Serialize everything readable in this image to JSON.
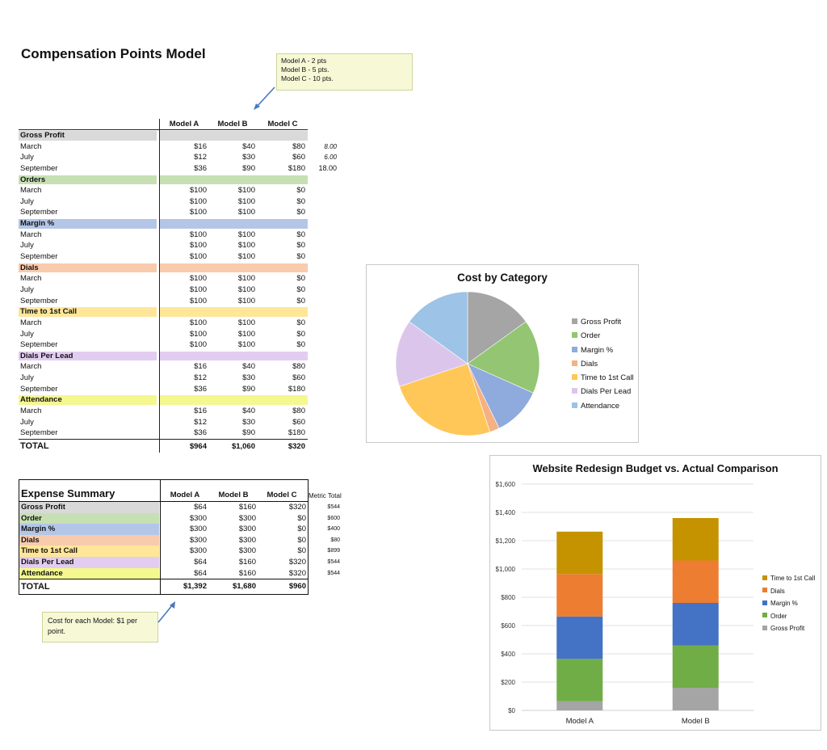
{
  "page_title": "Compensation Points Model",
  "note_top": [
    "Model A - 2 pts",
    "Model B - 5 pts.",
    "Model C - 10 pts."
  ],
  "note_bottom": "Cost for each Model: $1 per point.",
  "main_table": {
    "headers": [
      "Model A",
      "Model B",
      "Model C"
    ],
    "sections": [
      {
        "name": "Gross Profit",
        "color": "#d9d9d9",
        "rows": [
          {
            "label": "March",
            "a": "$16",
            "b": "$40",
            "c": "$80",
            "side": "8.00"
          },
          {
            "label": "July",
            "a": "$12",
            "b": "$30",
            "c": "$60",
            "side": "6.00"
          },
          {
            "label": "September",
            "a": "$36",
            "b": "$90",
            "c": "$180",
            "side": "18.00"
          }
        ]
      },
      {
        "name": "Orders",
        "color": "#c6e0b4",
        "rows": [
          {
            "label": "March",
            "a": "$100",
            "b": "$100",
            "c": "$0"
          },
          {
            "label": "July",
            "a": "$100",
            "b": "$100",
            "c": "$0"
          },
          {
            "label": "September",
            "a": "$100",
            "b": "$100",
            "c": "$0"
          }
        ]
      },
      {
        "name": "Margin %",
        "color": "#b4c6e7",
        "rows": [
          {
            "label": "March",
            "a": "$100",
            "b": "$100",
            "c": "$0"
          },
          {
            "label": "July",
            "a": "$100",
            "b": "$100",
            "c": "$0"
          },
          {
            "label": "September",
            "a": "$100",
            "b": "$100",
            "c": "$0"
          }
        ]
      },
      {
        "name": "Dials",
        "color": "#f8cbad",
        "rows": [
          {
            "label": "March",
            "a": "$100",
            "b": "$100",
            "c": "$0"
          },
          {
            "label": "July",
            "a": "$100",
            "b": "$100",
            "c": "$0"
          },
          {
            "label": "September",
            "a": "$100",
            "b": "$100",
            "c": "$0"
          }
        ]
      },
      {
        "name": "Time to 1st Call",
        "color": "#ffe699",
        "rows": [
          {
            "label": "March",
            "a": "$100",
            "b": "$100",
            "c": "$0"
          },
          {
            "label": "July",
            "a": "$100",
            "b": "$100",
            "c": "$0"
          },
          {
            "label": "September",
            "a": "$100",
            "b": "$100",
            "c": "$0"
          }
        ]
      },
      {
        "name": "Dials Per Lead",
        "color": "#e2cdf0",
        "rows": [
          {
            "label": "March",
            "a": "$16",
            "b": "$40",
            "c": "$80"
          },
          {
            "label": "July",
            "a": "$12",
            "b": "$30",
            "c": "$60"
          },
          {
            "label": "September",
            "a": "$36",
            "b": "$90",
            "c": "$180"
          }
        ]
      },
      {
        "name": "Attendance",
        "color": "#f4f88f",
        "rows": [
          {
            "label": "March",
            "a": "$16",
            "b": "$40",
            "c": "$80"
          },
          {
            "label": "July",
            "a": "$12",
            "b": "$30",
            "c": "$60"
          },
          {
            "label": "September",
            "a": "$36",
            "b": "$90",
            "c": "$180"
          }
        ]
      }
    ],
    "total": {
      "label": "TOTAL",
      "a": "$964",
      "b": "$1,060",
      "c": "$320"
    }
  },
  "expense_summary": {
    "title": "Expense Summary",
    "headers": [
      "Model A",
      "Model B",
      "Model C"
    ],
    "metric_total_header": "Metric Total",
    "rows": [
      {
        "label": "Gross Profit",
        "color": "#d9d9d9",
        "a": "$64",
        "b": "$160",
        "c": "$320",
        "metric": "$544"
      },
      {
        "label": "Order",
        "color": "#c6e0b4",
        "a": "$300",
        "b": "$300",
        "c": "$0",
        "metric": "$600"
      },
      {
        "label": "Margin %",
        "color": "#b4c6e7",
        "a": "$300",
        "b": "$300",
        "c": "$0",
        "metric": "$400"
      },
      {
        "label": "Dials",
        "color": "#f8cbad",
        "a": "$300",
        "b": "$300",
        "c": "$0",
        "metric": "$80"
      },
      {
        "label": "Time to 1st Call",
        "color": "#ffe699",
        "a": "$300",
        "b": "$300",
        "c": "$0",
        "metric": "$899"
      },
      {
        "label": "Dials Per Lead",
        "color": "#e2cdf0",
        "a": "$64",
        "b": "$160",
        "c": "$320",
        "metric": "$544"
      },
      {
        "label": "Attendance",
        "color": "#f4f88f",
        "a": "$64",
        "b": "$160",
        "c": "$320",
        "metric": "$544"
      }
    ],
    "total": {
      "label": "TOTAL",
      "a": "$1,392",
      "b": "$1,680",
      "c": "$960"
    }
  },
  "chart_data": [
    {
      "type": "pie",
      "title": "Cost by Category",
      "legend_position": "right",
      "categories": [
        "Gross Profit",
        "Order",
        "Margin %",
        "Dials",
        "Time to 1st Call",
        "Dials Per Lead",
        "Attendance"
      ],
      "values": [
        544,
        600,
        400,
        80,
        899,
        544,
        544
      ],
      "colors": [
        "#a5a5a5",
        "#93c572",
        "#8faadc",
        "#f4b183",
        "#ffc758",
        "#dcc5eb",
        "#9dc3e6"
      ]
    },
    {
      "type": "bar",
      "stacked": true,
      "title": "Website Redesign Budget vs. Actual Comparison",
      "categories": [
        "Model A",
        "Model B"
      ],
      "ylim": [
        0,
        1600
      ],
      "yticks": [
        "$0",
        "$200",
        "$400",
        "$600",
        "$800",
        "$1,000",
        "$1,200",
        "$1,400",
        "$1,600"
      ],
      "grid": true,
      "legend_position": "right",
      "series": [
        {
          "name": "Gross Profit",
          "color": "#a5a5a5",
          "values": [
            64,
            160
          ]
        },
        {
          "name": "Order",
          "color": "#70ad47",
          "values": [
            300,
            300
          ]
        },
        {
          "name": "Margin %",
          "color": "#4472c4",
          "values": [
            300,
            300
          ]
        },
        {
          "name": "Dials",
          "color": "#ed7d31",
          "values": [
            300,
            300
          ]
        },
        {
          "name": "Time to 1st Call",
          "color": "#c59300",
          "values": [
            300,
            300
          ]
        }
      ]
    }
  ]
}
